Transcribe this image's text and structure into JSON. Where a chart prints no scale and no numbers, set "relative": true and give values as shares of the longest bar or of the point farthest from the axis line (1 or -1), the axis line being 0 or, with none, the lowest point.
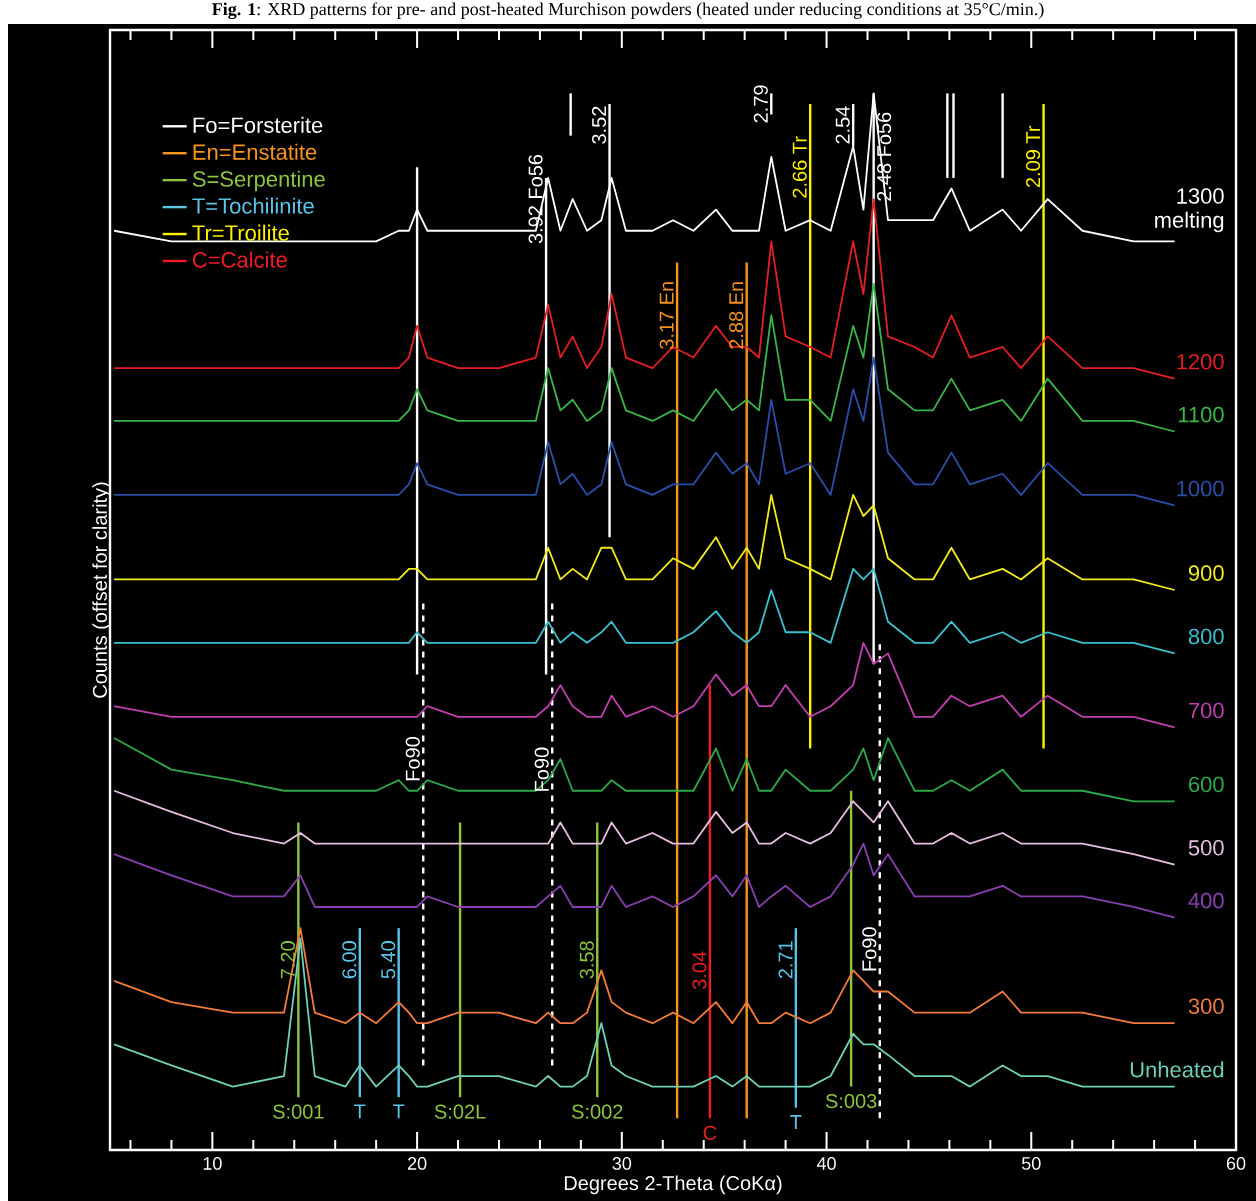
{
  "chart_data": {
    "type": "line",
    "title": "**Fig. 1**: XRD patterns for pre- and post-heated Murchison powders (heated under reducing conditions at 35°C/min.)",
    "xlabel": "Degrees 2-Theta  (CoKα)",
    "ylabel": "Counts  (offset for clarity)",
    "relative": true,
    "xlim": [
      5,
      60
    ],
    "xticks": [
      10,
      20,
      30,
      40,
      50,
      60
    ],
    "legend": "top left",
    "x": [
      5.2,
      8,
      11,
      13.5,
      14.3,
      15,
      16.5,
      17.2,
      18,
      19.1,
      19.6,
      20.0,
      20.5,
      22,
      24,
      25.8,
      26.4,
      27.0,
      27.6,
      28.3,
      29.0,
      29.5,
      30.2,
      31.5,
      32.5,
      33.5,
      34.6,
      35.4,
      36.1,
      36.7,
      37.3,
      38.0,
      39.2,
      40.2,
      41.3,
      41.8,
      42.3,
      43.0,
      44.3,
      45.2,
      46.1,
      47.0,
      48.6,
      49.5,
      50.8,
      52.5,
      55,
      57
    ],
    "series": [
      {
        "name": "1300 melting",
        "color": "#ffffff",
        "values": [
          0.87,
          0.86,
          0.86,
          0.86,
          0.86,
          0.86,
          0.86,
          0.86,
          0.86,
          0.87,
          0.87,
          0.89,
          0.87,
          0.87,
          0.87,
          0.87,
          0.92,
          0.87,
          0.9,
          0.87,
          0.88,
          0.92,
          0.87,
          0.87,
          0.88,
          0.87,
          0.89,
          0.87,
          0.87,
          0.87,
          0.94,
          0.87,
          0.88,
          0.87,
          0.95,
          0.89,
          1.0,
          0.88,
          0.88,
          0.88,
          0.91,
          0.87,
          0.89,
          0.87,
          0.9,
          0.87,
          0.86,
          0.86
        ]
      },
      {
        "name": "1200",
        "color": "#e31e24",
        "values": [
          0.74,
          0.74,
          0.74,
          0.74,
          0.74,
          0.74,
          0.74,
          0.74,
          0.74,
          0.74,
          0.75,
          0.78,
          0.75,
          0.74,
          0.74,
          0.75,
          0.8,
          0.75,
          0.77,
          0.74,
          0.76,
          0.81,
          0.75,
          0.74,
          0.76,
          0.75,
          0.78,
          0.76,
          0.76,
          0.75,
          0.86,
          0.77,
          0.76,
          0.75,
          0.86,
          0.81,
          0.9,
          0.77,
          0.76,
          0.75,
          0.79,
          0.75,
          0.76,
          0.74,
          0.77,
          0.74,
          0.74,
          0.73
        ]
      },
      {
        "name": "1100",
        "color": "#3ab54a",
        "values": [
          0.69,
          0.69,
          0.69,
          0.69,
          0.69,
          0.69,
          0.69,
          0.69,
          0.69,
          0.69,
          0.7,
          0.72,
          0.7,
          0.69,
          0.69,
          0.69,
          0.74,
          0.7,
          0.71,
          0.69,
          0.7,
          0.74,
          0.7,
          0.69,
          0.7,
          0.69,
          0.72,
          0.7,
          0.71,
          0.7,
          0.79,
          0.71,
          0.71,
          0.69,
          0.78,
          0.75,
          0.82,
          0.72,
          0.7,
          0.7,
          0.73,
          0.7,
          0.71,
          0.69,
          0.73,
          0.69,
          0.69,
          0.68
        ]
      },
      {
        "name": "1000",
        "color": "#2a4fa8",
        "values": [
          0.62,
          0.62,
          0.62,
          0.62,
          0.62,
          0.62,
          0.62,
          0.62,
          0.62,
          0.62,
          0.63,
          0.65,
          0.63,
          0.62,
          0.62,
          0.62,
          0.67,
          0.63,
          0.64,
          0.62,
          0.63,
          0.67,
          0.63,
          0.62,
          0.63,
          0.63,
          0.66,
          0.64,
          0.65,
          0.63,
          0.71,
          0.64,
          0.65,
          0.62,
          0.72,
          0.69,
          0.75,
          0.66,
          0.63,
          0.63,
          0.66,
          0.63,
          0.64,
          0.62,
          0.65,
          0.62,
          0.62,
          0.61
        ]
      },
      {
        "name": "900",
        "color": "#f2ec1c",
        "values": [
          0.54,
          0.54,
          0.54,
          0.54,
          0.54,
          0.54,
          0.54,
          0.54,
          0.54,
          0.54,
          0.55,
          0.55,
          0.54,
          0.54,
          0.54,
          0.54,
          0.57,
          0.54,
          0.55,
          0.54,
          0.57,
          0.57,
          0.54,
          0.54,
          0.56,
          0.55,
          0.58,
          0.55,
          0.57,
          0.55,
          0.62,
          0.56,
          0.55,
          0.54,
          0.62,
          0.6,
          0.61,
          0.56,
          0.54,
          0.54,
          0.57,
          0.54,
          0.55,
          0.54,
          0.56,
          0.54,
          0.54,
          0.53
        ]
      },
      {
        "name": "800",
        "color": "#3cc0cf",
        "values": [
          0.48,
          0.48,
          0.48,
          0.48,
          0.48,
          0.48,
          0.48,
          0.48,
          0.48,
          0.48,
          0.48,
          0.49,
          0.48,
          0.48,
          0.48,
          0.48,
          0.5,
          0.48,
          0.49,
          0.48,
          0.49,
          0.5,
          0.48,
          0.48,
          0.48,
          0.49,
          0.51,
          0.49,
          0.48,
          0.49,
          0.53,
          0.49,
          0.49,
          0.48,
          0.55,
          0.54,
          0.55,
          0.5,
          0.48,
          0.48,
          0.5,
          0.48,
          0.49,
          0.48,
          0.49,
          0.48,
          0.48,
          0.47
        ]
      },
      {
        "name": "700",
        "color": "#c03fae",
        "values": [
          0.42,
          0.41,
          0.41,
          0.41,
          0.41,
          0.41,
          0.41,
          0.41,
          0.41,
          0.41,
          0.41,
          0.41,
          0.42,
          0.41,
          0.41,
          0.41,
          0.42,
          0.44,
          0.42,
          0.41,
          0.41,
          0.43,
          0.41,
          0.42,
          0.41,
          0.42,
          0.45,
          0.43,
          0.44,
          0.42,
          0.42,
          0.44,
          0.41,
          0.42,
          0.44,
          0.48,
          0.46,
          0.47,
          0.41,
          0.41,
          0.43,
          0.42,
          0.43,
          0.41,
          0.43,
          0.41,
          0.41,
          0.4
        ]
      },
      {
        "name": "600",
        "color": "#2fa84a",
        "values": [
          0.39,
          0.36,
          0.35,
          0.34,
          0.34,
          0.34,
          0.34,
          0.34,
          0.34,
          0.35,
          0.34,
          0.34,
          0.35,
          0.34,
          0.34,
          0.34,
          0.35,
          0.37,
          0.34,
          0.34,
          0.34,
          0.35,
          0.34,
          0.34,
          0.34,
          0.34,
          0.38,
          0.34,
          0.37,
          0.34,
          0.34,
          0.36,
          0.34,
          0.34,
          0.36,
          0.38,
          0.35,
          0.39,
          0.34,
          0.34,
          0.35,
          0.34,
          0.36,
          0.34,
          0.34,
          0.34,
          0.33,
          0.33
        ]
      },
      {
        "name": "500",
        "color": "#e6bfe0",
        "values": [
          0.34,
          0.32,
          0.3,
          0.29,
          0.3,
          0.29,
          0.29,
          0.29,
          0.29,
          0.29,
          0.29,
          0.29,
          0.29,
          0.29,
          0.29,
          0.29,
          0.29,
          0.31,
          0.29,
          0.29,
          0.29,
          0.31,
          0.29,
          0.3,
          0.29,
          0.29,
          0.32,
          0.3,
          0.31,
          0.29,
          0.29,
          0.3,
          0.29,
          0.3,
          0.33,
          0.32,
          0.31,
          0.33,
          0.29,
          0.29,
          0.3,
          0.29,
          0.3,
          0.29,
          0.29,
          0.29,
          0.28,
          0.27
        ]
      },
      {
        "name": "400",
        "color": "#8a3fb0",
        "values": [
          0.28,
          0.26,
          0.24,
          0.24,
          0.26,
          0.23,
          0.23,
          0.23,
          0.23,
          0.23,
          0.23,
          0.23,
          0.24,
          0.23,
          0.23,
          0.23,
          0.24,
          0.25,
          0.23,
          0.23,
          0.23,
          0.25,
          0.23,
          0.24,
          0.23,
          0.24,
          0.26,
          0.24,
          0.26,
          0.23,
          0.24,
          0.25,
          0.23,
          0.24,
          0.27,
          0.29,
          0.26,
          0.28,
          0.24,
          0.24,
          0.24,
          0.24,
          0.25,
          0.24,
          0.24,
          0.24,
          0.23,
          0.22
        ]
      },
      {
        "name": "300",
        "color": "#f47b3e",
        "values": [
          0.16,
          0.14,
          0.13,
          0.13,
          0.21,
          0.13,
          0.12,
          0.13,
          0.12,
          0.14,
          0.13,
          0.12,
          0.12,
          0.13,
          0.13,
          0.12,
          0.13,
          0.12,
          0.12,
          0.13,
          0.17,
          0.14,
          0.13,
          0.12,
          0.13,
          0.12,
          0.14,
          0.12,
          0.14,
          0.12,
          0.12,
          0.13,
          0.12,
          0.13,
          0.17,
          0.16,
          0.15,
          0.15,
          0.13,
          0.13,
          0.13,
          0.13,
          0.15,
          0.13,
          0.13,
          0.13,
          0.12,
          0.12
        ]
      },
      {
        "name": "Unheated",
        "color": "#6fd0b8",
        "values": [
          0.1,
          0.08,
          0.06,
          0.07,
          0.2,
          0.07,
          0.06,
          0.08,
          0.06,
          0.08,
          0.07,
          0.06,
          0.06,
          0.07,
          0.07,
          0.06,
          0.07,
          0.06,
          0.06,
          0.07,
          0.12,
          0.08,
          0.07,
          0.06,
          0.06,
          0.06,
          0.07,
          0.06,
          0.07,
          0.06,
          0.06,
          0.06,
          0.06,
          0.07,
          0.11,
          0.1,
          0.1,
          0.09,
          0.07,
          0.07,
          0.07,
          0.06,
          0.08,
          0.07,
          0.07,
          0.06,
          0.06,
          0.06
        ]
      },
      {
        "name": "Fo=Forsterite",
        "color": "#ffffff",
        "x": [
          20.0,
          20.0
        ],
        "values": [
          0.45,
          0.93
        ]
      },
      {
        "color": "#ffffff",
        "x": [
          26.3,
          26.3
        ],
        "values": [
          0.45,
          0.92
        ]
      },
      {
        "color": "#ffffff",
        "x": [
          27.5,
          27.5
        ],
        "values": [
          0.96,
          1.0
        ]
      },
      {
        "color": "#ffffff",
        "x": [
          29.4,
          29.4
        ],
        "values": [
          0.58,
          0.99
        ]
      },
      {
        "color": "#ffffff",
        "x": [
          37.3,
          37.3
        ],
        "values": [
          0.98,
          1.0
        ]
      },
      {
        "color": "#ffffff",
        "x": [
          41.3,
          41.3
        ],
        "values": [
          0.95,
          0.99
        ]
      },
      {
        "color": "#ffffff",
        "x": [
          42.3,
          42.3
        ],
        "values": [
          0.46,
          1.0
        ]
      },
      {
        "color": "#ffffff",
        "x": [
          45.9,
          45.9
        ],
        "values": [
          0.92,
          1.0
        ]
      },
      {
        "color": "#ffffff",
        "x": [
          46.2,
          46.2
        ],
        "values": [
          0.92,
          1.0
        ]
      },
      {
        "color": "#ffffff",
        "x": [
          48.6,
          48.6
        ],
        "values": [
          0.92,
          1.0
        ]
      },
      {
        "color": "#ffffff",
        "x": [
          20.3,
          20.3
        ],
        "values": [
          0.08,
          0.52
        ],
        "line_style": "dashed"
      },
      {
        "color": "#ffffff",
        "x": [
          26.6,
          26.6
        ],
        "values": [
          0.08,
          0.52
        ],
        "line_style": "dashed"
      },
      {
        "color": "#ffffff",
        "x": [
          42.6,
          42.6
        ],
        "values": [
          0.03,
          0.48
        ],
        "line_style": "dashed"
      },
      {
        "name": "En=Enstatite",
        "color": "#f7941d",
        "x": [
          32.7,
          32.7
        ],
        "values": [
          0.03,
          0.84
        ]
      },
      {
        "color": "#f7941d",
        "x": [
          36.1,
          36.1
        ],
        "values": [
          0.03,
          0.84
        ]
      },
      {
        "name": "S=Serpentine",
        "color": "#8cc63f",
        "x": [
          14.2,
          14.2
        ],
        "values": [
          0.05,
          0.31
        ]
      },
      {
        "color": "#8cc63f",
        "x": [
          22.1,
          22.1
        ],
        "values": [
          0.05,
          0.31
        ]
      },
      {
        "color": "#8cc63f",
        "x": [
          28.8,
          28.8
        ],
        "values": [
          0.05,
          0.31
        ]
      },
      {
        "color": "#8cc63f",
        "x": [
          41.2,
          41.2
        ],
        "values": [
          0.06,
          0.34
        ]
      },
      {
        "name": "T=Tochilinite",
        "color": "#5bc5e8",
        "x": [
          17.2,
          17.2
        ],
        "values": [
          0.05,
          0.21
        ]
      },
      {
        "color": "#5bc5e8",
        "x": [
          19.1,
          19.1
        ],
        "values": [
          0.05,
          0.21
        ]
      },
      {
        "color": "#5bc5e8",
        "x": [
          38.5,
          38.5
        ],
        "values": [
          0.04,
          0.21
        ]
      },
      {
        "name": "Tr=Troilite",
        "color": "#fff200",
        "x": [
          39.2,
          39.2
        ],
        "values": [
          0.38,
          0.99
        ]
      },
      {
        "color": "#fff200",
        "x": [
          50.6,
          50.6
        ],
        "values": [
          0.38,
          0.99
        ]
      },
      {
        "name": "C=Calcite",
        "color": "#ed1c24",
        "x": [
          34.3,
          34.3
        ],
        "values": [
          0.03,
          0.44
        ]
      }
    ],
    "annotations": [
      {
        "text": "3.92 Fo56",
        "x": 26.3,
        "y": 0.9
      },
      {
        "text": "3.52",
        "x": 29.4,
        "y": 0.97
      },
      {
        "text": "2.79",
        "x": 37.3,
        "y": 0.99
      },
      {
        "text": "2.66 Tr",
        "x": 39.2,
        "y": 0.93
      },
      {
        "text": "2.54",
        "x": 41.3,
        "y": 0.97
      },
      {
        "text": "2.48 Fo56",
        "x": 42.3,
        "y": 0.94
      },
      {
        "text": "2.09 Tr",
        "x": 50.6,
        "y": 0.94
      },
      {
        "text": "3.17 En",
        "x": 32.7,
        "y": 0.79
      },
      {
        "text": "2.88 En",
        "x": 36.1,
        "y": 0.79
      },
      {
        "text": "Fo90",
        "x": 20.3,
        "y": 0.37
      },
      {
        "text": "Fo90",
        "x": 26.6,
        "y": 0.36
      },
      {
        "text": "Fo90",
        "x": 42.6,
        "y": 0.19
      },
      {
        "text": "7.20",
        "x": 14.2,
        "y": 0.18
      },
      {
        "text": "6.00",
        "x": 17.2,
        "y": 0.18
      },
      {
        "text": "5.40",
        "x": 19.1,
        "y": 0.18
      },
      {
        "text": "3.58",
        "x": 28.8,
        "y": 0.18
      },
      {
        "text": "3.04",
        "x": 34.3,
        "y": 0.17
      },
      {
        "text": "2.71",
        "x": 38.5,
        "y": 0.18
      },
      {
        "text": "S:001",
        "x": 14.2,
        "y": 0.05
      },
      {
        "text": "T",
        "x": 17.2,
        "y": 0.05
      },
      {
        "text": "T",
        "x": 19.1,
        "y": 0.05
      },
      {
        "text": "S:02L",
        "x": 22.1,
        "y": 0.05
      },
      {
        "text": "S:002",
        "x": 28.8,
        "y": 0.05
      },
      {
        "text": "C",
        "x": 34.3,
        "y": 0.03
      },
      {
        "text": "T",
        "x": 38.5,
        "y": 0.04
      },
      {
        "text": "S:003",
        "x": 41.2,
        "y": 0.06
      }
    ]
  }
}
